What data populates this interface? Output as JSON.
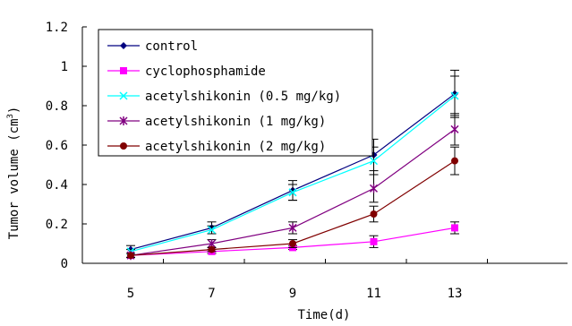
{
  "chart_data": {
    "type": "line",
    "x": [
      5,
      7,
      9,
      11,
      13
    ],
    "xlabel": "Time(d)",
    "ylabel": "Tumor volume (cm",
    "ylabel_sup": "3",
    "ylabel_close": ")",
    "ylim": [
      0,
      1.2
    ],
    "yticks": [
      "0",
      "0.2",
      "0.4",
      "0.6",
      "0.8",
      "1",
      "1.2"
    ],
    "xticks": [
      "5",
      "7",
      "9",
      "11",
      "13"
    ],
    "grid": false,
    "legend_position": "top-left",
    "series": [
      {
        "name": "control",
        "color": "#000080",
        "marker": "diamond",
        "values": [
          0.07,
          0.18,
          0.37,
          0.55,
          0.86
        ],
        "errors": [
          0.02,
          0.03,
          0.05,
          0.08,
          0.12
        ]
      },
      {
        "name": "cyclophosphamide",
        "color": "#ff00ff",
        "marker": "square",
        "values": [
          0.04,
          0.06,
          0.08,
          0.11,
          0.18
        ],
        "errors": [
          0.01,
          0.01,
          0.01,
          0.03,
          0.03
        ]
      },
      {
        "name": "acetylshikonin (0.5 mg/kg)",
        "color": "#00ffff",
        "marker": "x",
        "values": [
          0.06,
          0.17,
          0.36,
          0.52,
          0.85
        ],
        "errors": [
          0.01,
          0.02,
          0.04,
          0.07,
          0.1
        ]
      },
      {
        "name": "acetylshikonin (1 mg/kg)",
        "color": "#800080",
        "marker": "star",
        "values": [
          0.04,
          0.1,
          0.18,
          0.38,
          0.68
        ],
        "errors": [
          0.01,
          0.02,
          0.03,
          0.07,
          0.08
        ]
      },
      {
        "name": "acetylshikonin (2 mg/kg)",
        "color": "#800000",
        "marker": "circle",
        "values": [
          0.04,
          0.07,
          0.1,
          0.25,
          0.52
        ],
        "errors": [
          0.01,
          0.01,
          0.02,
          0.04,
          0.07
        ]
      }
    ]
  }
}
